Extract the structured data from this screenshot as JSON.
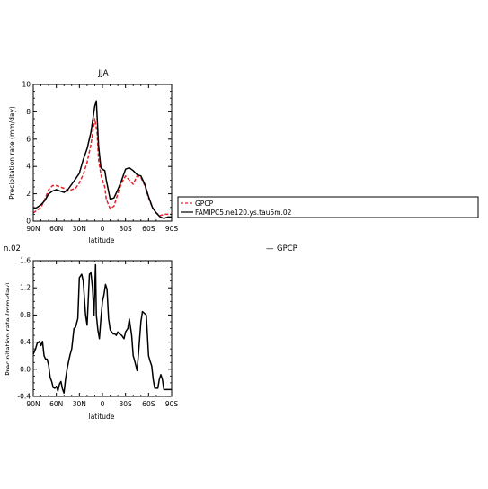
{
  "chart_data": [
    {
      "type": "line",
      "title": "JJA",
      "xlabel": "latitude",
      "ylabel": "Precipitation rate (mm/day)",
      "xlim": [
        90,
        -90
      ],
      "ylim": [
        0,
        10
      ],
      "x_tick_values": [
        90,
        60,
        30,
        0,
        -30,
        -60,
        -90
      ],
      "x_tick_labels": [
        "90N",
        "60N",
        "30N",
        "0",
        "30S",
        "60S",
        "90S"
      ],
      "y_tick_values": [
        0,
        2,
        4,
        6,
        8,
        10
      ],
      "y_tick_labels": [
        "0",
        "2",
        "4",
        "6",
        "8",
        "10"
      ],
      "legend_placement": "right",
      "series": [
        {
          "name": "GPCP",
          "color": "#e8202a",
          "dash": "dashed",
          "x": [
            90,
            85,
            80,
            75,
            70,
            65,
            60,
            55,
            50,
            45,
            40,
            35,
            30,
            25,
            20,
            15,
            10,
            7,
            5,
            2,
            0,
            -3,
            -5,
            -10,
            -15,
            -20,
            -25,
            -30,
            -35,
            -40,
            -45,
            -50,
            -55,
            -60,
            -65,
            -70,
            -75,
            -80,
            -85,
            -90
          ],
          "y": [
            0.6,
            0.8,
            1.0,
            1.6,
            2.3,
            2.6,
            2.6,
            2.5,
            2.4,
            2.2,
            2.3,
            2.4,
            2.8,
            3.4,
            4.3,
            5.6,
            7.5,
            6.5,
            4.5,
            3.4,
            3.0,
            2.5,
            1.6,
            0.9,
            1.1,
            2.0,
            2.8,
            3.3,
            3.0,
            2.7,
            3.3,
            3.2,
            2.6,
            1.7,
            1.0,
            0.6,
            0.4,
            0.5,
            0.5,
            0.5
          ]
        },
        {
          "name": "FAMIPC5.ne120.ys.tau5m.02",
          "color": "#000000",
          "dash": "solid",
          "x": [
            90,
            85,
            80,
            75,
            70,
            65,
            60,
            55,
            50,
            45,
            40,
            35,
            30,
            25,
            20,
            15,
            10,
            8,
            5,
            2,
            0,
            -3,
            -5,
            -10,
            -15,
            -20,
            -25,
            -30,
            -35,
            -40,
            -45,
            -50,
            -55,
            -60,
            -65,
            -70,
            -75,
            -80,
            -85,
            -90
          ],
          "y": [
            0.9,
            1.0,
            1.2,
            1.5,
            2.0,
            2.2,
            2.3,
            2.2,
            2.1,
            2.3,
            2.7,
            3.1,
            3.5,
            4.5,
            5.3,
            6.5,
            8.4,
            8.8,
            5.5,
            3.9,
            3.8,
            3.7,
            3.0,
            1.6,
            1.7,
            2.3,
            3.0,
            3.8,
            3.9,
            3.7,
            3.4,
            3.3,
            2.7,
            1.8,
            1.0,
            0.6,
            0.3,
            0.2,
            0.3,
            0.3
          ]
        }
      ]
    },
    {
      "type": "line",
      "title": "",
      "xlabel": "latitude",
      "ylabel": "Precipitation rate (mm/day)",
      "xlim": [
        90,
        -90
      ],
      "ylim": [
        -0.4,
        1.6
      ],
      "x_tick_values": [
        90,
        60,
        30,
        0,
        -30,
        -60,
        -90
      ],
      "x_tick_labels": [
        "90N",
        "60N",
        "30N",
        "0",
        "30S",
        "60S",
        "90S"
      ],
      "y_tick_values": [
        -0.4,
        0,
        0.4,
        0.8,
        1.2,
        1.6
      ],
      "y_tick_labels": [
        "-0.4",
        "0.0",
        "0.4",
        "0.8",
        "1.2",
        "1.6"
      ],
      "series": [
        {
          "name": "",
          "color": "#000000",
          "dash": "solid",
          "x": [
            90,
            87,
            85,
            82,
            80,
            78,
            76,
            74,
            72,
            70,
            68,
            66,
            64,
            62,
            60,
            58,
            56,
            54,
            52,
            50,
            48,
            46,
            44,
            42,
            40,
            37,
            35,
            32,
            30,
            27,
            25,
            22,
            20,
            17,
            15,
            13,
            11,
            9,
            8,
            6,
            4,
            2,
            0,
            -2,
            -4,
            -6,
            -8,
            -10,
            -12,
            -14,
            -16,
            -18,
            -20,
            -22,
            -25,
            -28,
            -30,
            -33,
            -35,
            -38,
            -40,
            -42,
            -45,
            -47,
            -50,
            -52,
            -55,
            -57,
            -60,
            -62,
            -64,
            -66,
            -68,
            -70,
            -72,
            -74,
            -76,
            -78,
            -80,
            -82,
            -85,
            -88,
            -90
          ],
          "y": [
            0.22,
            0.3,
            0.38,
            0.41,
            0.35,
            0.41,
            0.2,
            0.15,
            0.15,
            0.06,
            -0.12,
            -0.18,
            -0.27,
            -0.28,
            -0.25,
            -0.32,
            -0.22,
            -0.18,
            -0.29,
            -0.35,
            -0.15,
            0.0,
            0.12,
            0.22,
            0.3,
            0.6,
            0.62,
            0.75,
            1.35,
            1.4,
            1.3,
            0.8,
            0.65,
            1.4,
            1.42,
            1.2,
            0.8,
            1.54,
            0.8,
            0.58,
            0.45,
            0.75,
            1.0,
            1.1,
            1.25,
            1.18,
            0.75,
            0.58,
            0.55,
            0.52,
            0.52,
            0.5,
            0.55,
            0.52,
            0.5,
            0.45,
            0.55,
            0.6,
            0.74,
            0.5,
            0.2,
            0.12,
            -0.02,
            0.25,
            0.7,
            0.85,
            0.82,
            0.8,
            0.2,
            0.12,
            0.05,
            -0.15,
            -0.28,
            -0.28,
            -0.28,
            -0.15,
            -0.08,
            -0.15,
            -0.3,
            -0.3,
            -0.3,
            -0.3,
            -0.3
          ]
        }
      ]
    }
  ],
  "fragments": {
    "left_label": "n.02",
    "right_legend_line": "—",
    "right_legend_label": "GPCP"
  },
  "colors": {
    "gpcp": "#e8202a",
    "model": "#000000"
  }
}
